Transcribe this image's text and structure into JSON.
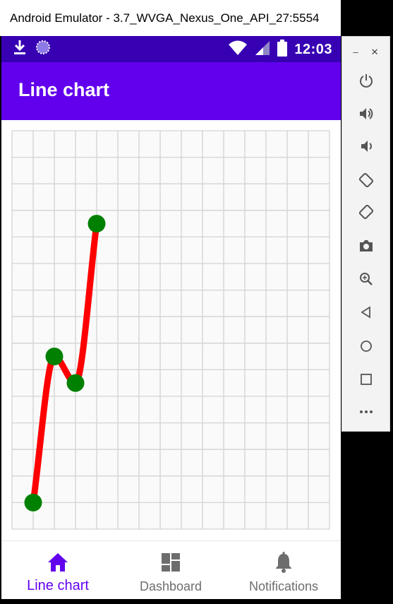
{
  "window": {
    "title": "Android Emulator - 3.7_WVGA_Nexus_One_API_27:5554"
  },
  "statusbar": {
    "time": "12:03"
  },
  "appbar": {
    "title": "Line chart"
  },
  "chart_data": {
    "type": "line",
    "x": [
      1,
      2,
      3,
      4
    ],
    "y": [
      1,
      6.5,
      5.5,
      11.5
    ],
    "xlim": [
      0,
      15
    ],
    "ylim": [
      0,
      15
    ],
    "grid": true,
    "line_color": "#ff0000",
    "marker_color": "#008000",
    "smooth": true
  },
  "bottom_nav": {
    "items": [
      {
        "label": "Line chart",
        "icon": "home-icon",
        "active": true
      },
      {
        "label": "Dashboard",
        "icon": "dashboard-icon",
        "active": false
      },
      {
        "label": "Notifications",
        "icon": "bell-icon",
        "active": false
      }
    ],
    "active_color": "#6200ee",
    "inactive_color": "#6d6d6d"
  },
  "colors": {
    "statusbar": "#3700b3",
    "appbar": "#6200ee"
  },
  "emulator_controls": [
    "minimize-icon",
    "close-icon",
    "power-icon",
    "volume-up-icon",
    "volume-down-icon",
    "rotate-left-icon",
    "rotate-right-icon",
    "camera-icon",
    "zoom-icon",
    "back-icon",
    "home-circle-icon",
    "overview-icon",
    "more-icon"
  ]
}
